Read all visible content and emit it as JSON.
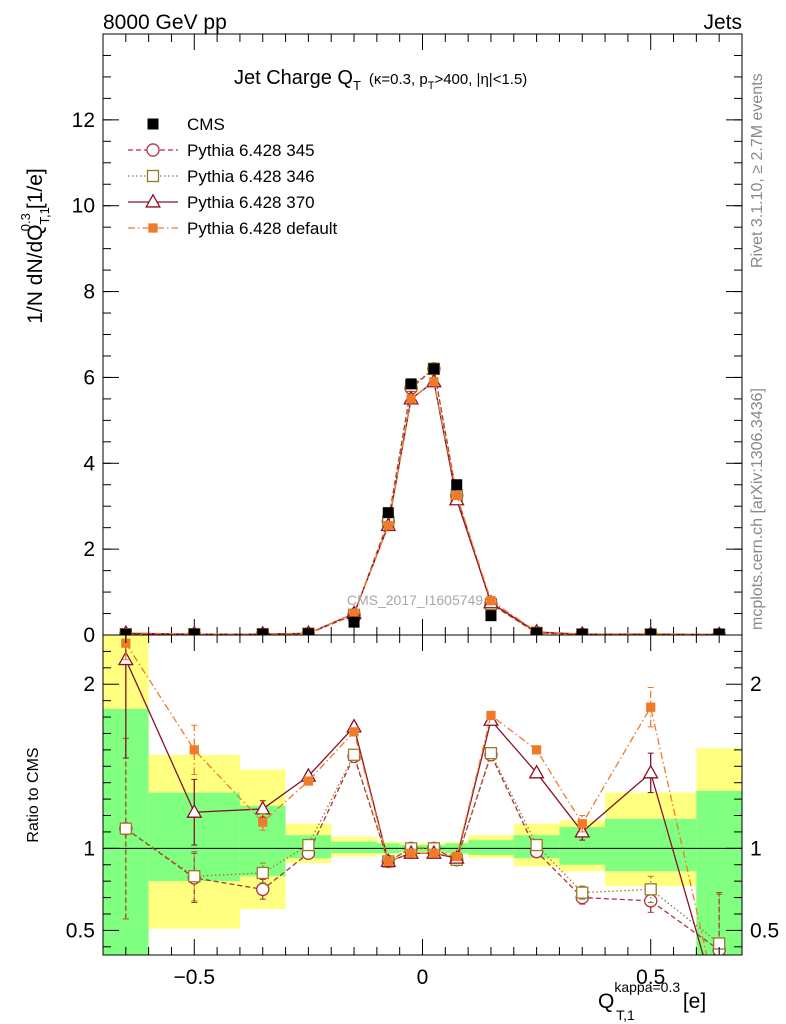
{
  "header": {
    "energy_label": "8000 GeV pp",
    "process_label": "Jets",
    "side_label_top": "Rivet 3.1.10, ≥ 2.7M events",
    "side_label_bottom": "mcplots.cern.ch [arXiv:1306.3436]",
    "watermark": "CMS_2017_I1605749"
  },
  "chart_data": {
    "type": "line",
    "title": {
      "main": "Jet Charge Q",
      "main_sub": "T",
      "detail": "(κ=0.3, p",
      "detail_sub": "T",
      "detail_end": ">400, |η|<1.5)"
    },
    "ylabel": {
      "main": "1/N dN/dQ",
      "sup": "0.3",
      "sub": "T,1",
      "unit": "[1/e]"
    },
    "xlabel": {
      "main": "Q",
      "sup": "kappa=0.3",
      "sub": "T,1",
      "unit": "[e]"
    },
    "ratio_ylabel": "Ratio to CMS",
    "xlim": [
      -0.7,
      0.7
    ],
    "ylim": [
      0,
      14
    ],
    "ratio_ylim": [
      0.35,
      2.3
    ],
    "xticks": [
      {
        "v": -0.5,
        "label": "−0.5"
      },
      {
        "v": 0,
        "label": "0"
      },
      {
        "v": 0.5,
        "label": "0.5"
      }
    ],
    "yticks": [
      {
        "v": 0,
        "label": "0"
      },
      {
        "v": 2,
        "label": "2"
      },
      {
        "v": 4,
        "label": "4"
      },
      {
        "v": 6,
        "label": "6"
      },
      {
        "v": 8,
        "label": "8"
      },
      {
        "v": 10,
        "label": "10"
      },
      {
        "v": 12,
        "label": "12"
      }
    ],
    "ratio_yticks": [
      {
        "v": 0.5,
        "label": "0.5"
      },
      {
        "v": 1,
        "label": "1"
      },
      {
        "v": 2,
        "label": "2"
      }
    ],
    "x": [
      -0.65,
      -0.5,
      -0.35,
      -0.25,
      -0.15,
      -0.075,
      -0.025,
      0.025,
      0.075,
      0.15,
      0.25,
      0.35,
      0.5,
      0.65
    ],
    "bins": [
      [
        -0.7,
        -0.6
      ],
      [
        -0.6,
        -0.4
      ],
      [
        -0.4,
        -0.3
      ],
      [
        -0.3,
        -0.2
      ],
      [
        -0.2,
        -0.1
      ],
      [
        -0.1,
        -0.05
      ],
      [
        -0.05,
        0
      ],
      [
        0,
        0.05
      ],
      [
        0.05,
        0.1
      ],
      [
        0.1,
        0.2
      ],
      [
        0.2,
        0.3
      ],
      [
        0.3,
        0.4
      ],
      [
        0.4,
        0.6
      ],
      [
        0.6,
        0.7
      ]
    ],
    "data": {
      "name": "CMS",
      "values": [
        0.02,
        0.02,
        0.02,
        0.03,
        0.3,
        2.85,
        5.85,
        6.2,
        3.5,
        0.45,
        0.05,
        0.02,
        0.02,
        0.02
      ],
      "band_inner": [
        [
          0.3,
          1.85
        ],
        [
          0.8,
          1.34
        ],
        [
          0.83,
          1.26
        ],
        [
          0.94,
          1.08
        ],
        [
          0.97,
          1.04
        ],
        [
          0.97,
          1.03
        ],
        [
          0.98,
          1.02
        ],
        [
          0.98,
          1.02
        ],
        [
          0.97,
          1.03
        ],
        [
          0.96,
          1.05
        ],
        [
          0.94,
          1.08
        ],
        [
          0.9,
          1.13
        ],
        [
          0.86,
          1.18
        ],
        [
          0.3,
          1.35
        ]
      ],
      "band_outer": [
        [
          0.3,
          2.3
        ],
        [
          0.51,
          1.57
        ],
        [
          0.63,
          1.48
        ],
        [
          0.91,
          1.15
        ],
        [
          0.95,
          1.07
        ],
        [
          0.96,
          1.04
        ],
        [
          0.97,
          1.03
        ],
        [
          0.97,
          1.03
        ],
        [
          0.96,
          1.04
        ],
        [
          0.94,
          1.08
        ],
        [
          0.89,
          1.15
        ],
        [
          0.86,
          1.17
        ],
        [
          0.77,
          1.34
        ],
        [
          0.3,
          1.61
        ]
      ]
    },
    "series": [
      {
        "name": "Pythia 6.428 345",
        "color": "#b03040",
        "dash": "5,3",
        "marker": "open-circle",
        "values": [
          0.02,
          0.02,
          0.02,
          0.03,
          0.47,
          2.65,
          5.75,
          6.2,
          3.25,
          0.72,
          0.05,
          0.01,
          0.01,
          0.01
        ],
        "ratio": [
          1.12,
          0.82,
          0.75,
          0.97,
          1.56,
          0.92,
          1.0,
          1.0,
          0.93,
          1.57,
          0.98,
          0.7,
          0.68,
          0.38
        ],
        "ratio_err": [
          0.55,
          0.15,
          0.06,
          0.02,
          0.02,
          0.01,
          0.01,
          0.01,
          0.01,
          0.02,
          0.02,
          0.04,
          0.07,
          0.35
        ]
      },
      {
        "name": "Pythia 6.428 346",
        "color": "#9a7a2a",
        "dash": "1.5,2.5",
        "marker": "open-square",
        "values": [
          0.02,
          0.02,
          0.02,
          0.03,
          0.47,
          2.65,
          5.8,
          6.2,
          3.25,
          0.72,
          0.05,
          0.01,
          0.01,
          0.01
        ],
        "ratio": [
          1.12,
          0.83,
          0.85,
          1.02,
          1.57,
          0.92,
          1.0,
          1.0,
          0.93,
          1.58,
          1.02,
          0.73,
          0.75,
          0.42
        ],
        "ratio_err": [
          0.55,
          0.15,
          0.06,
          0.02,
          0.02,
          0.01,
          0.01,
          0.01,
          0.01,
          0.02,
          0.02,
          0.04,
          0.08,
          0.3
        ]
      },
      {
        "name": "Pythia 6.428 370",
        "color": "#8a1028",
        "dash": "",
        "marker": "open-triangle",
        "values": [
          0.04,
          0.02,
          0.02,
          0.04,
          0.5,
          2.55,
          5.5,
          5.9,
          3.15,
          0.75,
          0.07,
          0.02,
          0.02,
          0.01
        ],
        "ratio": [
          2.15,
          1.22,
          1.24,
          1.44,
          1.74,
          0.92,
          0.97,
          0.97,
          0.94,
          1.78,
          1.46,
          1.1,
          1.46,
          0.01
        ],
        "ratio_err": [
          0.6,
          0.2,
          0.05,
          0.02,
          0.02,
          0.01,
          0.01,
          0.01,
          0.01,
          0.02,
          0.02,
          0.05,
          0.12,
          0.0
        ]
      },
      {
        "name": "Pythia 6.428 default",
        "color": "#f07a28",
        "dash": "7,3,1.5,3",
        "marker": "filled-square",
        "values": [
          0.05,
          0.02,
          0.02,
          0.04,
          0.5,
          2.55,
          5.5,
          5.9,
          3.25,
          0.8,
          0.08,
          0.02,
          0.03,
          0.01
        ],
        "ratio": [
          2.25,
          1.6,
          1.16,
          1.41,
          1.71,
          0.92,
          0.97,
          0.97,
          0.95,
          1.81,
          1.6,
          1.15,
          1.86,
          0.01
        ],
        "ratio_err": [
          0.1,
          0.15,
          0.05,
          0.02,
          0.02,
          0.01,
          0.01,
          0.01,
          0.01,
          0.02,
          0.02,
          0.05,
          0.12,
          0.0
        ]
      }
    ],
    "legend_position": "top-left"
  }
}
